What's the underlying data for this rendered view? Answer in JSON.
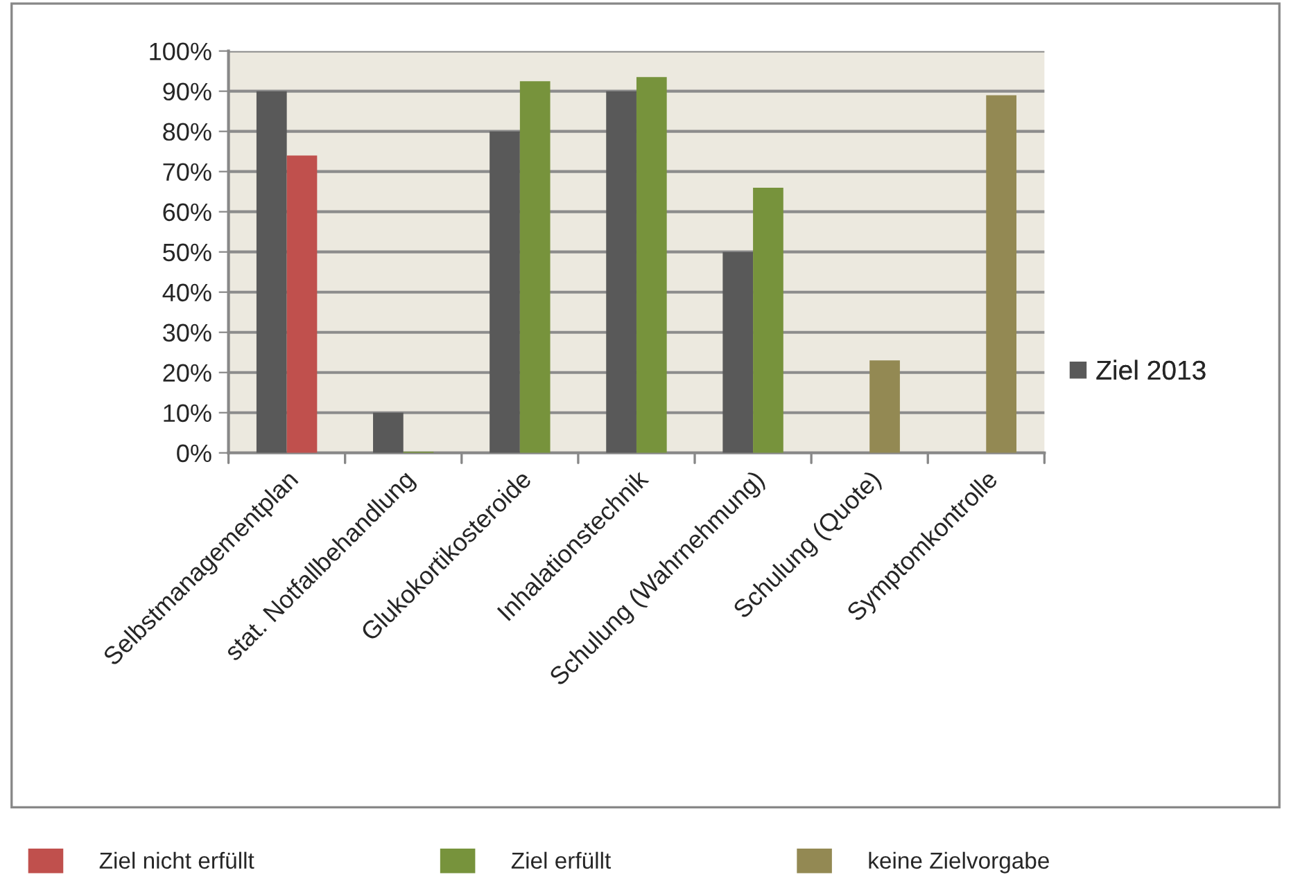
{
  "chart_data": {
    "type": "bar",
    "categories": [
      "Selbstmanagementplan",
      "stat. Notfallbehandlung",
      "Glukokortikosteroide",
      "Inhalationstechnik",
      "Schulung (Wahrnehmung)",
      "Schulung (Quote)",
      "Symptomkontrolle"
    ],
    "series": [
      {
        "name": "Ziel 2013",
        "color": "#595959",
        "values": [
          90,
          10,
          80,
          90,
          50,
          null,
          null
        ]
      },
      {
        "name": "Ziel nicht erfüllt",
        "color": "#c0504d",
        "values": [
          74,
          null,
          null,
          null,
          null,
          null,
          null
        ]
      },
      {
        "name": "Ziel erfüllt",
        "color": "#77933c",
        "values": [
          null,
          0.3,
          92.5,
          93.5,
          66,
          null,
          null
        ]
      },
      {
        "name": "keine Zielvorgabe",
        "color": "#938953",
        "values": [
          null,
          null,
          null,
          null,
          null,
          23,
          89
        ]
      }
    ],
    "ylim": [
      0,
      100
    ],
    "yticks": [
      {
        "value": 0,
        "label": "0%"
      },
      {
        "value": 10,
        "label": "10%"
      },
      {
        "value": 20,
        "label": "20%"
      },
      {
        "value": 30,
        "label": "30%"
      },
      {
        "value": 40,
        "label": "40%"
      },
      {
        "value": 50,
        "label": "50%"
      },
      {
        "value": 60,
        "label": "60%"
      },
      {
        "value": 70,
        "label": "70%"
      },
      {
        "value": 80,
        "label": "80%"
      },
      {
        "value": 90,
        "label": "90%"
      },
      {
        "value": 100,
        "label": "100%"
      }
    ],
    "grid": "y",
    "legend": "right"
  }
}
